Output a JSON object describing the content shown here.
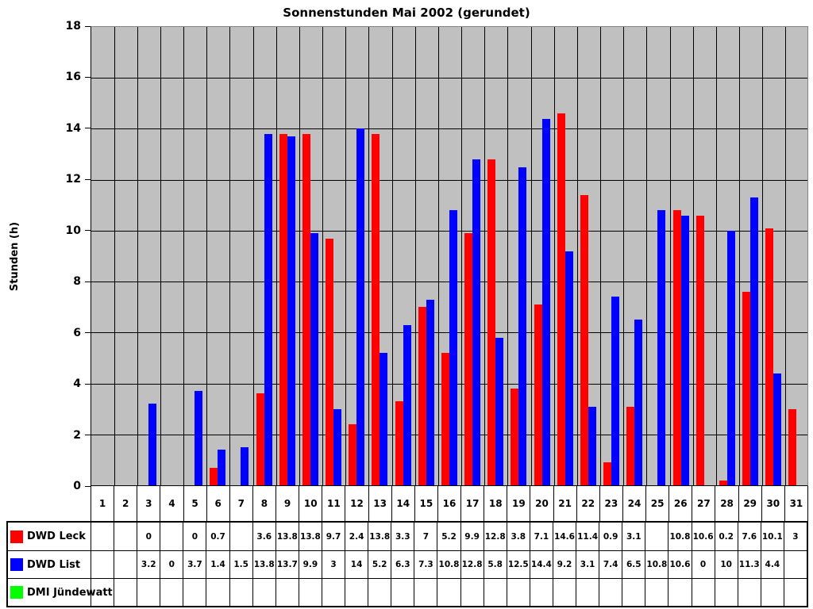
{
  "chart_data": {
    "type": "bar",
    "title": "Sonnenstunden Mai 2002 (gerundet)",
    "ylabel": "Stunden (h)",
    "ylim": [
      0,
      18
    ],
    "ytick_step": 2,
    "yticks": [
      0,
      2,
      4,
      6,
      8,
      10,
      12,
      14,
      16,
      18
    ],
    "grid": true,
    "plot_bg": "#c0c0c0",
    "grid_color": "#000000",
    "legend_position": "table-left",
    "categories": [
      1,
      2,
      3,
      4,
      5,
      6,
      7,
      8,
      9,
      10,
      11,
      12,
      13,
      14,
      15,
      16,
      17,
      18,
      19,
      20,
      21,
      22,
      23,
      24,
      25,
      26,
      27,
      28,
      29,
      30,
      31
    ],
    "series": [
      {
        "name": "DWD Leck",
        "color": "#ff0000",
        "values": [
          null,
          null,
          0,
          null,
          0,
          0.7,
          null,
          3.6,
          13.8,
          13.8,
          9.7,
          2.4,
          13.8,
          3.3,
          7,
          5.2,
          9.9,
          12.8,
          3.8,
          7.1,
          14.6,
          11.4,
          0.9,
          3.1,
          null,
          10.8,
          10.6,
          0.2,
          7.6,
          10.1,
          3
        ]
      },
      {
        "name": "DWD List",
        "color": "#0000ff",
        "values": [
          null,
          null,
          3.2,
          0,
          3.7,
          1.4,
          1.5,
          13.8,
          13.7,
          9.9,
          3,
          14,
          5.2,
          6.3,
          7.3,
          10.8,
          12.8,
          5.8,
          12.5,
          14.4,
          9.2,
          3.1,
          7.4,
          6.5,
          10.8,
          10.6,
          0,
          10,
          11.3,
          4.4,
          null
        ]
      },
      {
        "name": "DMI Jündewatt",
        "color": "#00ff00",
        "values": [
          null,
          null,
          null,
          null,
          null,
          null,
          null,
          null,
          null,
          null,
          null,
          null,
          null,
          null,
          null,
          null,
          null,
          null,
          null,
          null,
          null,
          null,
          null,
          null,
          null,
          null,
          null,
          null,
          null,
          null,
          null
        ]
      }
    ]
  }
}
